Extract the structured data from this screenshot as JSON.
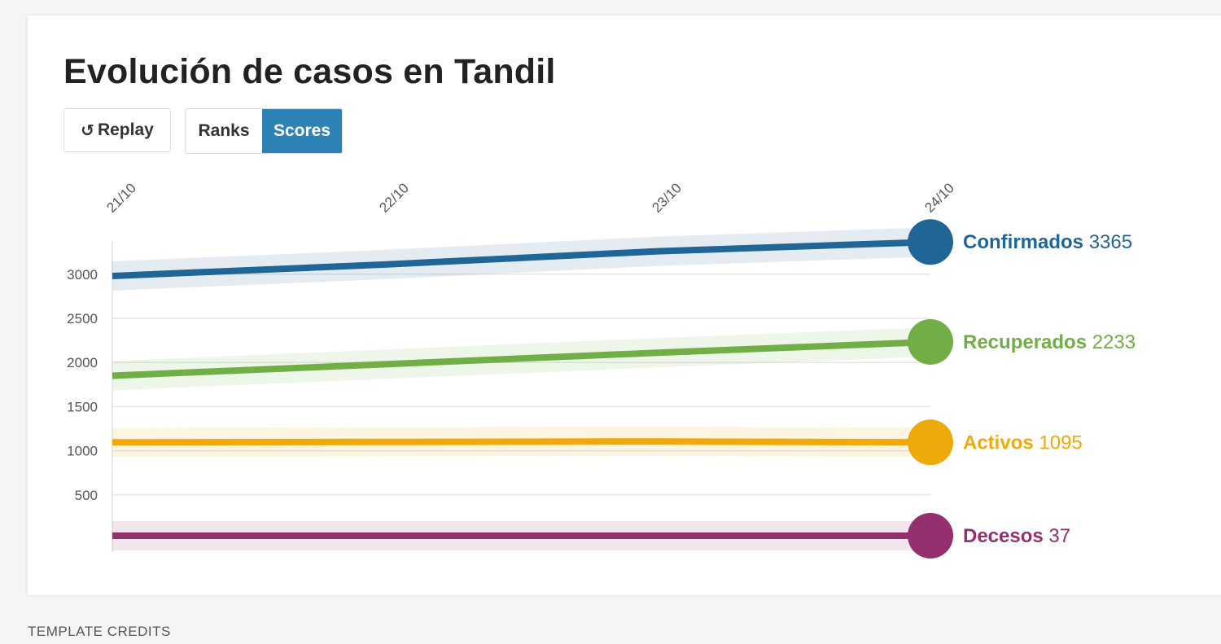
{
  "title": "Evolución de casos en Tandil",
  "controls": {
    "replay_label": "Replay",
    "ranks_label": "Ranks",
    "scores_label": "Scores",
    "active_mode": "Scores",
    "active_color": "#2d83b5"
  },
  "footer": {
    "credits": "TEMPLATE CREDITS"
  },
  "chart_data": {
    "type": "line",
    "title": "Evolución de casos en Tandil",
    "x": [
      "21/10",
      "22/10",
      "23/10",
      "24/10"
    ],
    "y_ticks": [
      500,
      1000,
      1500,
      2000,
      2500,
      3000
    ],
    "ylim": [
      0,
      3365
    ],
    "grid": true,
    "legend": "end-labels",
    "series": [
      {
        "name": "Confirmados",
        "values": [
          2980,
          3110,
          3260,
          3365
        ],
        "color": "#1f6596"
      },
      {
        "name": "Recuperados",
        "values": [
          1850,
          1980,
          2110,
          2233
        ],
        "color": "#71ae46"
      },
      {
        "name": "Activos",
        "values": [
          1095,
          1100,
          1105,
          1095
        ],
        "color": "#eeaa0a"
      },
      {
        "name": "Decesos",
        "values": [
          37,
          37,
          37,
          37
        ],
        "color": "#93306d"
      }
    ]
  }
}
